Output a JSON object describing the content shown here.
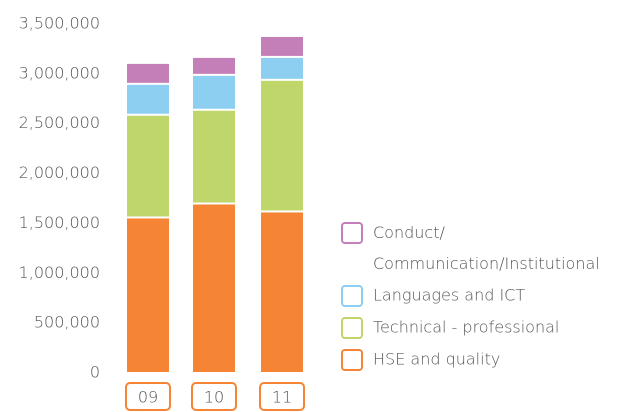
{
  "chart_data": {
    "type": "stacked-bar",
    "categories": [
      "09",
      "10",
      "11"
    ],
    "series": [
      {
        "name": "HSE and quality",
        "color": "#f58535",
        "values": [
          1560000,
          1700000,
          1620000
        ]
      },
      {
        "name": "Technical - professional",
        "color": "#bed66a",
        "values": [
          1030000,
          940000,
          1320000
        ]
      },
      {
        "name": "Languages and ICT",
        "color": "#8dcff0",
        "values": [
          310000,
          350000,
          230000
        ]
      },
      {
        "name": "Conduct/Communication/Institutional",
        "color": "#c57fb8",
        "values": [
          210000,
          180000,
          210000
        ]
      }
    ],
    "ylim": [
      0,
      3500000
    ],
    "yticks": [
      0,
      {
        "value": 500000,
        "label": "500,000"
      },
      {
        "value": 1000000,
        "label": "1,000,000"
      },
      {
        "value": 1500000,
        "label": "1,500,000"
      },
      {
        "value": 2000000,
        "label": "2,000,000"
      },
      {
        "value": 2500000,
        "label": "2,500,000"
      },
      {
        "value": 3000000,
        "label": "3,000,000"
      },
      {
        "value": 3500000,
        "label": "3,500,000"
      }
    ],
    "grid": false
  }
}
